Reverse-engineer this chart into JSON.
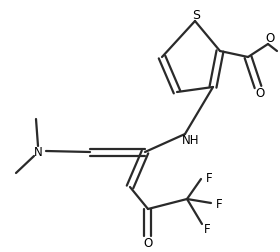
{
  "bg_color": "#ffffff",
  "line_color": "#2a2a2a",
  "line_width": 1.6,
  "font_size": 8.5,
  "figsize": [
    2.8,
    2.53
  ],
  "dpi": 100,
  "xlim": [
    0,
    280
  ],
  "ylim": [
    0,
    253
  ]
}
